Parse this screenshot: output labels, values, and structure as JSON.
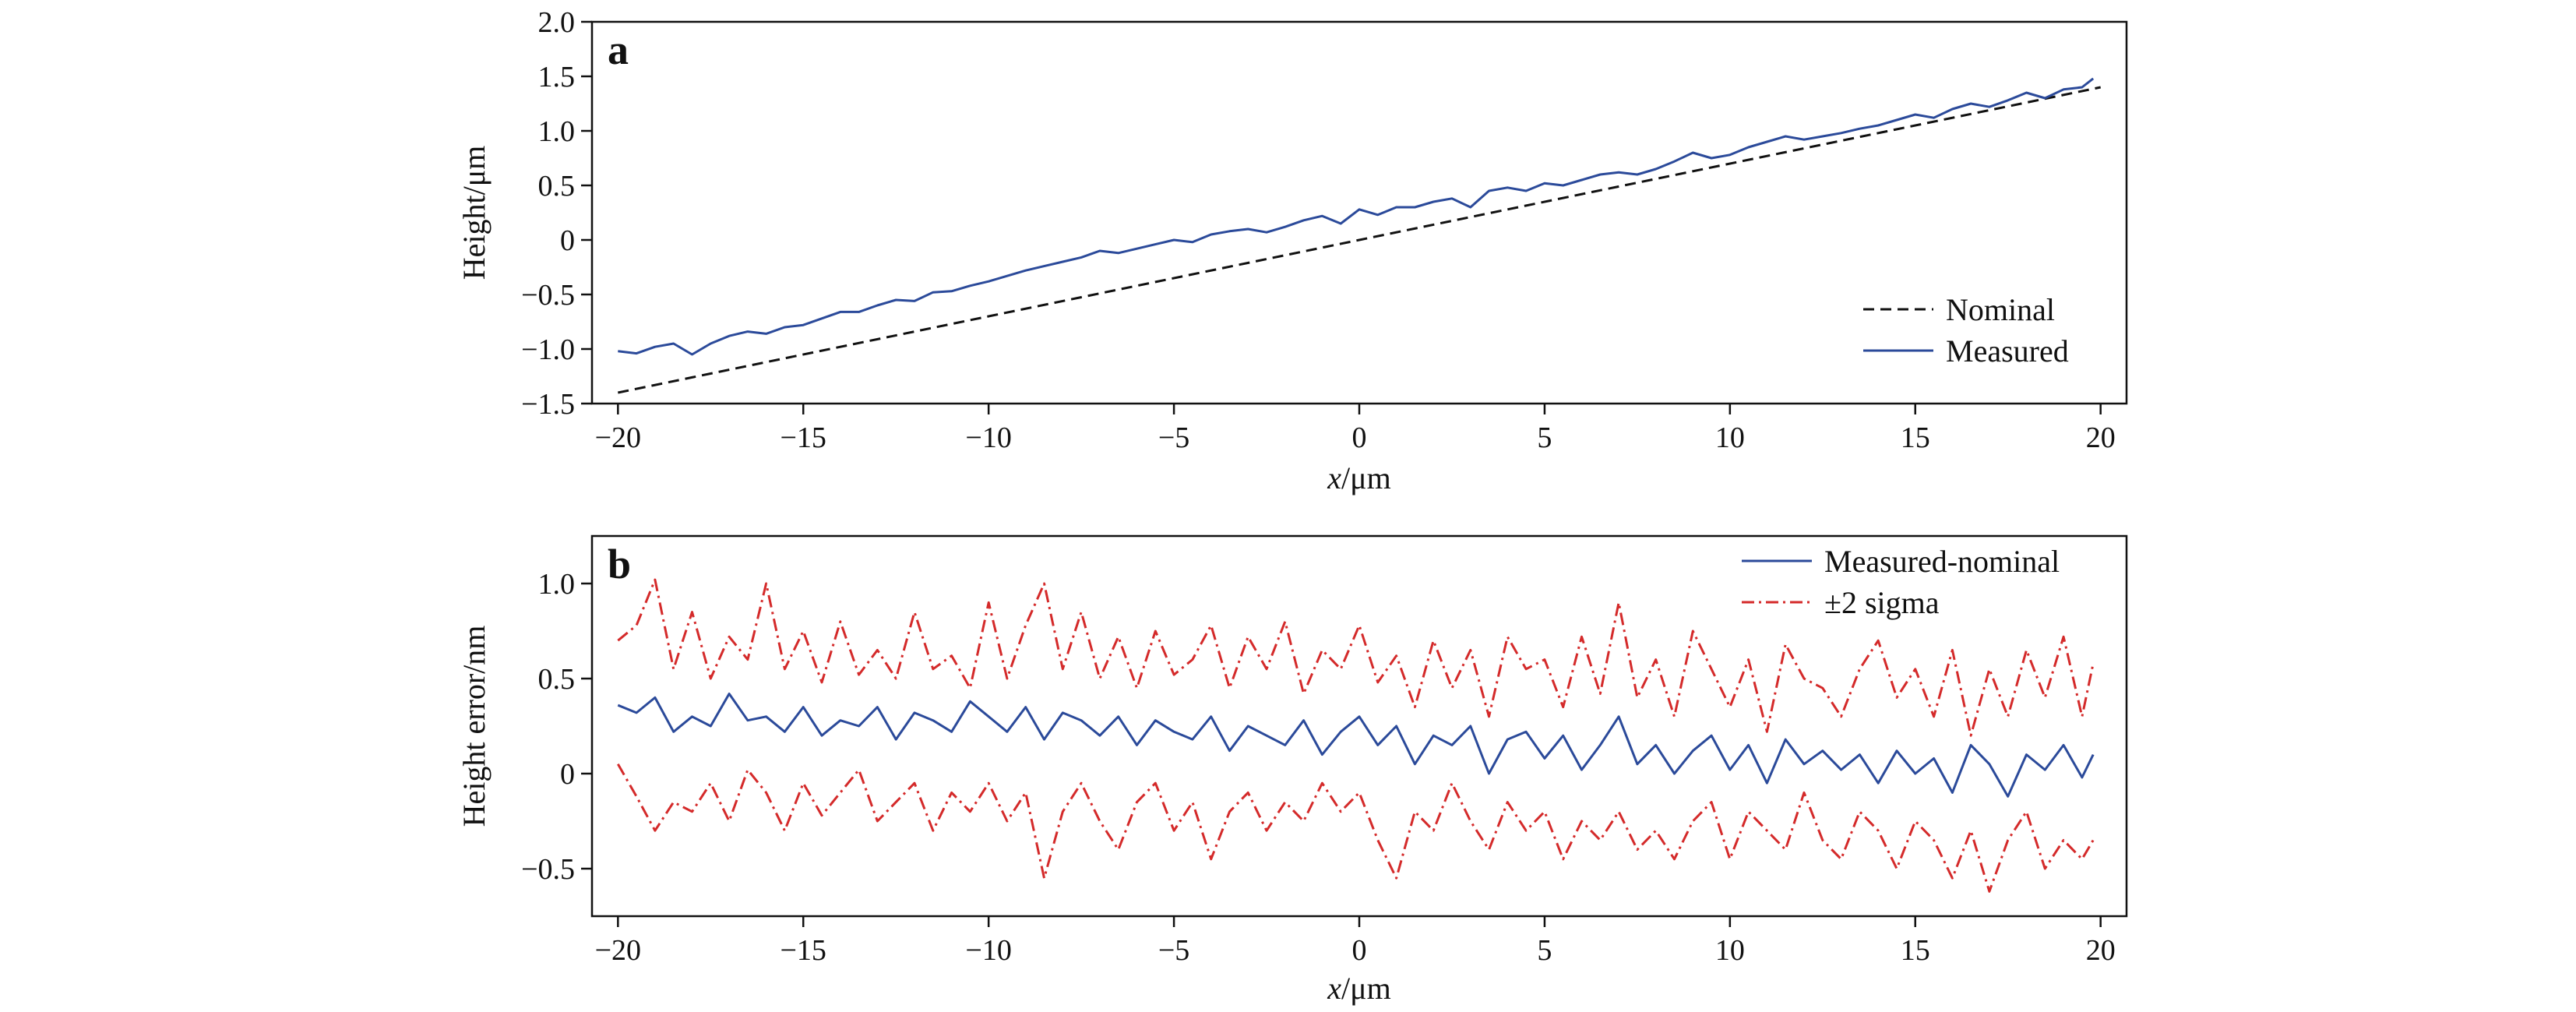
{
  "chart_data": [
    {
      "panel": "a",
      "type": "line",
      "xlabel_var": "x",
      "xlabel_unit": "/μm",
      "ylabel": "Height/μm",
      "xlim": [
        -20.7,
        20.7
      ],
      "ylim": [
        -1.5,
        2.0
      ],
      "xticks": [
        -20,
        -15,
        -10,
        -5,
        0,
        5,
        10,
        15,
        20
      ],
      "xtick_labels": [
        "−20",
        "−15",
        "−10",
        "−5",
        "0",
        "5",
        "10",
        "15",
        "20"
      ],
      "yticks": [
        -1.5,
        -1.0,
        -0.5,
        0,
        0.5,
        1.0,
        1.5,
        2.0
      ],
      "ytick_labels": [
        "−1.5",
        "−1.0",
        "−0.5",
        "0",
        "0.5",
        "1.0",
        "1.5",
        "2.0"
      ],
      "grid": false,
      "legend_position": "bottom-right",
      "series": [
        {
          "name": "Nominal",
          "style": "dashed",
          "color": "#111111",
          "x": [
            -20,
            20
          ],
          "y": [
            -1.4,
            1.4
          ]
        },
        {
          "name": "Measured",
          "style": "solid",
          "color": "#2b4a9a",
          "x": [
            -20,
            -19.5,
            -19,
            -18.5,
            -18,
            -17.5,
            -17,
            -16.5,
            -16,
            -15.5,
            -15,
            -14.5,
            -14,
            -13.5,
            -13,
            -12.5,
            -12,
            -11.5,
            -11,
            -10.5,
            -10,
            -9.5,
            -9,
            -8.5,
            -8,
            -7.5,
            -7,
            -6.5,
            -6,
            -5.5,
            -5,
            -4.5,
            -4,
            -3.5,
            -3,
            -2.5,
            -2,
            -1.5,
            -1,
            -0.5,
            0,
            0.5,
            1,
            1.5,
            2,
            2.5,
            3,
            3.5,
            4,
            4.5,
            5,
            5.5,
            6,
            6.5,
            7,
            7.5,
            8,
            8.5,
            9,
            9.5,
            10,
            10.5,
            11,
            11.5,
            12,
            12.5,
            13,
            13.5,
            14,
            14.5,
            15,
            15.5,
            16,
            16.5,
            17,
            17.5,
            18,
            18.5,
            19,
            19.5,
            19.8
          ],
          "y": [
            -1.02,
            -1.04,
            -0.98,
            -0.95,
            -1.05,
            -0.95,
            -0.88,
            -0.84,
            -0.86,
            -0.8,
            -0.78,
            -0.72,
            -0.66,
            -0.66,
            -0.6,
            -0.55,
            -0.56,
            -0.48,
            -0.47,
            -0.42,
            -0.38,
            -0.33,
            -0.28,
            -0.24,
            -0.2,
            -0.16,
            -0.1,
            -0.12,
            -0.08,
            -0.04,
            0.0,
            -0.02,
            0.05,
            0.08,
            0.1,
            0.07,
            0.12,
            0.18,
            0.22,
            0.15,
            0.28,
            0.23,
            0.3,
            0.3,
            0.35,
            0.38,
            0.3,
            0.45,
            0.48,
            0.45,
            0.52,
            0.5,
            0.55,
            0.6,
            0.62,
            0.6,
            0.65,
            0.72,
            0.8,
            0.75,
            0.78,
            0.85,
            0.9,
            0.95,
            0.92,
            0.95,
            0.98,
            1.02,
            1.05,
            1.1,
            1.15,
            1.12,
            1.2,
            1.25,
            1.22,
            1.28,
            1.35,
            1.3,
            1.38,
            1.4,
            1.48
          ]
        }
      ]
    },
    {
      "panel": "b",
      "type": "line",
      "xlabel_var": "x",
      "xlabel_unit": "/μm",
      "ylabel": "Height error/nm",
      "xlim": [
        -20.7,
        20.7
      ],
      "ylim": [
        -0.75,
        1.25
      ],
      "xticks": [
        -20,
        -15,
        -10,
        -5,
        0,
        5,
        10,
        15,
        20
      ],
      "xtick_labels": [
        "−20",
        "−15",
        "−10",
        "−5",
        "0",
        "5",
        "10",
        "15",
        "20"
      ],
      "yticks": [
        -0.5,
        0,
        0.5,
        1.0
      ],
      "ytick_labels": [
        "−0.5",
        "0",
        "0.5",
        "1.0"
      ],
      "grid": false,
      "legend_position": "top-right",
      "series": [
        {
          "name": "Measured-nominal",
          "style": "solid",
          "color": "#2b4a9a",
          "x": [
            -20,
            -19.5,
            -19,
            -18.5,
            -18,
            -17.5,
            -17,
            -16.5,
            -16,
            -15.5,
            -15,
            -14.5,
            -14,
            -13.5,
            -13,
            -12.5,
            -12,
            -11.5,
            -11,
            -10.5,
            -10,
            -9.5,
            -9,
            -8.5,
            -8,
            -7.5,
            -7,
            -6.5,
            -6,
            -5.5,
            -5,
            -4.5,
            -4,
            -3.5,
            -3,
            -2.5,
            -2,
            -1.5,
            -1,
            -0.5,
            0,
            0.5,
            1,
            1.5,
            2,
            2.5,
            3,
            3.5,
            4,
            4.5,
            5,
            5.5,
            6,
            6.5,
            7,
            7.5,
            8,
            8.5,
            9,
            9.5,
            10,
            10.5,
            11,
            11.5,
            12,
            12.5,
            13,
            13.5,
            14,
            14.5,
            15,
            15.5,
            16,
            16.5,
            17,
            17.5,
            18,
            18.5,
            19,
            19.5,
            19.8
          ],
          "y": [
            0.36,
            0.32,
            0.4,
            0.22,
            0.3,
            0.25,
            0.42,
            0.28,
            0.3,
            0.22,
            0.35,
            0.2,
            0.28,
            0.25,
            0.35,
            0.18,
            0.32,
            0.28,
            0.22,
            0.38,
            0.3,
            0.22,
            0.35,
            0.18,
            0.32,
            0.28,
            0.2,
            0.3,
            0.15,
            0.28,
            0.22,
            0.18,
            0.3,
            0.12,
            0.25,
            0.2,
            0.15,
            0.28,
            0.1,
            0.22,
            0.3,
            0.15,
            0.25,
            0.05,
            0.2,
            0.15,
            0.25,
            0.0,
            0.18,
            0.22,
            0.08,
            0.2,
            0.02,
            0.15,
            0.3,
            0.05,
            0.15,
            0.0,
            0.12,
            0.2,
            0.02,
            0.15,
            -0.05,
            0.18,
            0.05,
            0.12,
            0.02,
            0.1,
            -0.05,
            0.12,
            0.0,
            0.08,
            -0.1,
            0.15,
            0.05,
            -0.12,
            0.1,
            0.02,
            0.15,
            -0.02,
            0.1
          ]
        },
        {
          "name": "±2 sigma",
          "style": "dashdot",
          "color": "#d42a2a",
          "x": [
            -20,
            -19.5,
            -19,
            -18.5,
            -18,
            -17.5,
            -17,
            -16.5,
            -16,
            -15.5,
            -15,
            -14.5,
            -14,
            -13.5,
            -13,
            -12.5,
            -12,
            -11.5,
            -11,
            -10.5,
            -10,
            -9.5,
            -9,
            -8.5,
            -8,
            -7.5,
            -7,
            -6.5,
            -6,
            -5.5,
            -5,
            -4.5,
            -4,
            -3.5,
            -3,
            -2.5,
            -2,
            -1.5,
            -1,
            -0.5,
            0,
            0.5,
            1,
            1.5,
            2,
            2.5,
            3,
            3.5,
            4,
            4.5,
            5,
            5.5,
            6,
            6.5,
            7,
            7.5,
            8,
            8.5,
            9,
            9.5,
            10,
            10.5,
            11,
            11.5,
            12,
            12.5,
            13,
            13.5,
            14,
            14.5,
            15,
            15.5,
            16,
            16.5,
            17,
            17.5,
            18,
            18.5,
            19,
            19.5,
            19.8
          ],
          "y": [
            0.7,
            0.78,
            1.02,
            0.55,
            0.85,
            0.5,
            0.72,
            0.6,
            1.0,
            0.55,
            0.75,
            0.48,
            0.8,
            0.52,
            0.65,
            0.5,
            0.85,
            0.55,
            0.62,
            0.45,
            0.9,
            0.5,
            0.78,
            1.0,
            0.55,
            0.85,
            0.5,
            0.72,
            0.45,
            0.75,
            0.52,
            0.6,
            0.78,
            0.45,
            0.72,
            0.55,
            0.8,
            0.42,
            0.65,
            0.55,
            0.78,
            0.48,
            0.62,
            0.35,
            0.7,
            0.45,
            0.65,
            0.3,
            0.72,
            0.55,
            0.6,
            0.35,
            0.72,
            0.42,
            0.9,
            0.4,
            0.6,
            0.3,
            0.75,
            0.55,
            0.35,
            0.6,
            0.22,
            0.68,
            0.5,
            0.45,
            0.3,
            0.55,
            0.7,
            0.4,
            0.55,
            0.3,
            0.65,
            0.2,
            0.55,
            0.3,
            0.65,
            0.4,
            0.72,
            0.3,
            0.58
          ]
        },
        {
          "name": "",
          "style": "dashdot",
          "color": "#d42a2a",
          "x": [
            -20,
            -19.5,
            -19,
            -18.5,
            -18,
            -17.5,
            -17,
            -16.5,
            -16,
            -15.5,
            -15,
            -14.5,
            -14,
            -13.5,
            -13,
            -12.5,
            -12,
            -11.5,
            -11,
            -10.5,
            -10,
            -9.5,
            -9,
            -8.5,
            -8,
            -7.5,
            -7,
            -6.5,
            -6,
            -5.5,
            -5,
            -4.5,
            -4,
            -3.5,
            -3,
            -2.5,
            -2,
            -1.5,
            -1,
            -0.5,
            0,
            0.5,
            1,
            1.5,
            2,
            2.5,
            3,
            3.5,
            4,
            4.5,
            5,
            5.5,
            6,
            6.5,
            7,
            7.5,
            8,
            8.5,
            9,
            9.5,
            10,
            10.5,
            11,
            11.5,
            12,
            12.5,
            13,
            13.5,
            14,
            14.5,
            15,
            15.5,
            16,
            16.5,
            17,
            17.5,
            18,
            18.5,
            19,
            19.5,
            19.8
          ],
          "y": [
            0.05,
            -0.12,
            -0.3,
            -0.15,
            -0.2,
            -0.05,
            -0.25,
            0.02,
            -0.1,
            -0.3,
            -0.05,
            -0.22,
            -0.1,
            0.02,
            -0.25,
            -0.15,
            -0.05,
            -0.3,
            -0.1,
            -0.2,
            -0.05,
            -0.25,
            -0.1,
            -0.55,
            -0.2,
            -0.05,
            -0.25,
            -0.4,
            -0.15,
            -0.05,
            -0.3,
            -0.15,
            -0.45,
            -0.2,
            -0.1,
            -0.3,
            -0.15,
            -0.25,
            -0.05,
            -0.2,
            -0.1,
            -0.35,
            -0.55,
            -0.2,
            -0.3,
            -0.05,
            -0.25,
            -0.4,
            -0.15,
            -0.3,
            -0.2,
            -0.45,
            -0.25,
            -0.35,
            -0.2,
            -0.4,
            -0.3,
            -0.45,
            -0.25,
            -0.15,
            -0.45,
            -0.2,
            -0.3,
            -0.4,
            -0.1,
            -0.35,
            -0.45,
            -0.2,
            -0.3,
            -0.5,
            -0.25,
            -0.35,
            -0.55,
            -0.3,
            -0.62,
            -0.35,
            -0.2,
            -0.5,
            -0.35,
            -0.45,
            -0.35
          ]
        }
      ]
    }
  ]
}
